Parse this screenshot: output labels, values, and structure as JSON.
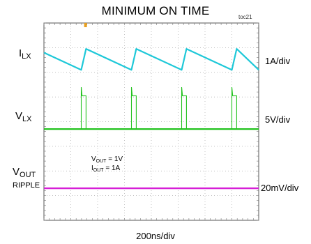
{
  "title": "MINIMUM ON TIME",
  "figure_id": "toc21",
  "conditions": {
    "vout_label": "V",
    "vout_sub": "OUT",
    "vout_value": " = 1V",
    "iout_label": "I",
    "iout_sub": "OUT",
    "iout_value": " = 1A"
  },
  "chart_data": {
    "type": "line",
    "title": "MINIMUM ON TIME",
    "x_scale": "200ns/div",
    "divisions": {
      "x": 8,
      "y": 8
    },
    "grid": true,
    "switching_period_divs": 1.87,
    "on_time_divs": 0.18,
    "first_edge_div": 1.57,
    "series": [
      {
        "name": "ILX",
        "label_main": "I",
        "label_sub": "LX",
        "scale": "1A/div",
        "color": "#1ec8d8",
        "waveform": "sawtooth",
        "level_high_div": 6.95,
        "level_low_div": 6.1
      },
      {
        "name": "VLX",
        "label_main": "V",
        "label_sub": "LX",
        "scale": "5V/div",
        "color": "#22c21e",
        "waveform": "pulse",
        "level_high_div": 5.05,
        "level_low_div": 3.7
      },
      {
        "name": "VOUT RIPPLE",
        "label_main": "V",
        "label_sub": "OUT",
        "label_extra": "RIPPLE",
        "scale": "20mV/div",
        "color": "#d61fd6",
        "waveform": "flat",
        "level_div": 1.3
      }
    ]
  }
}
